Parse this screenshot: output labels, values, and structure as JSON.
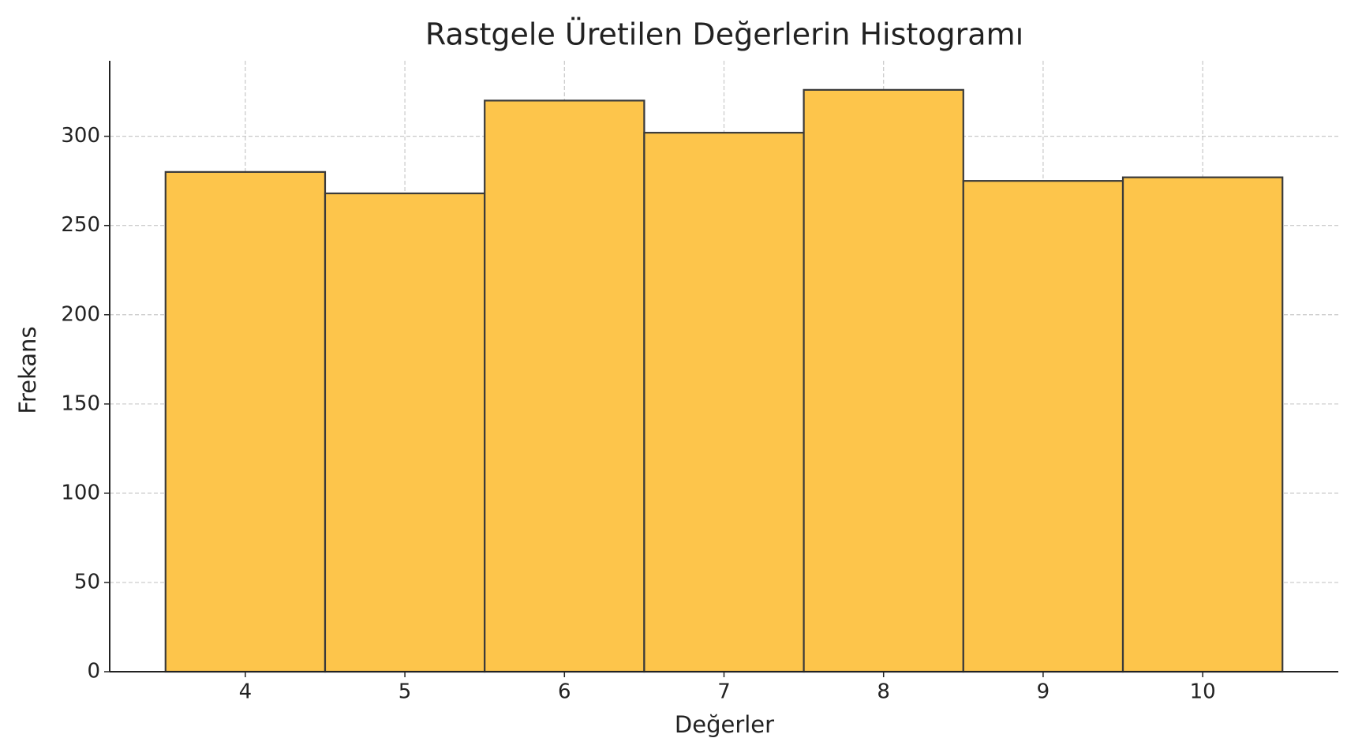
{
  "chart_data": {
    "type": "histogram",
    "title": "Rastgele Üretilen Değerlerin Histogramı",
    "x_label": "Değerler",
    "y_label": "Frekans",
    "bins": [
      3.5,
      4.5,
      5.5,
      6.5,
      7.5,
      8.5,
      9.5,
      10.5
    ],
    "values": [
      280,
      268,
      320,
      302,
      326,
      275,
      277
    ],
    "color": "#fdc54b",
    "edgecolor": "#3a3a3a",
    "xlim": [
      3.15,
      10.85
    ],
    "ylim": [
      0,
      342.3
    ],
    "xticks": [
      4,
      5,
      6,
      7,
      8,
      9,
      10
    ],
    "yticks": [
      0,
      50,
      100,
      150,
      200,
      250,
      300
    ],
    "grid": true
  }
}
